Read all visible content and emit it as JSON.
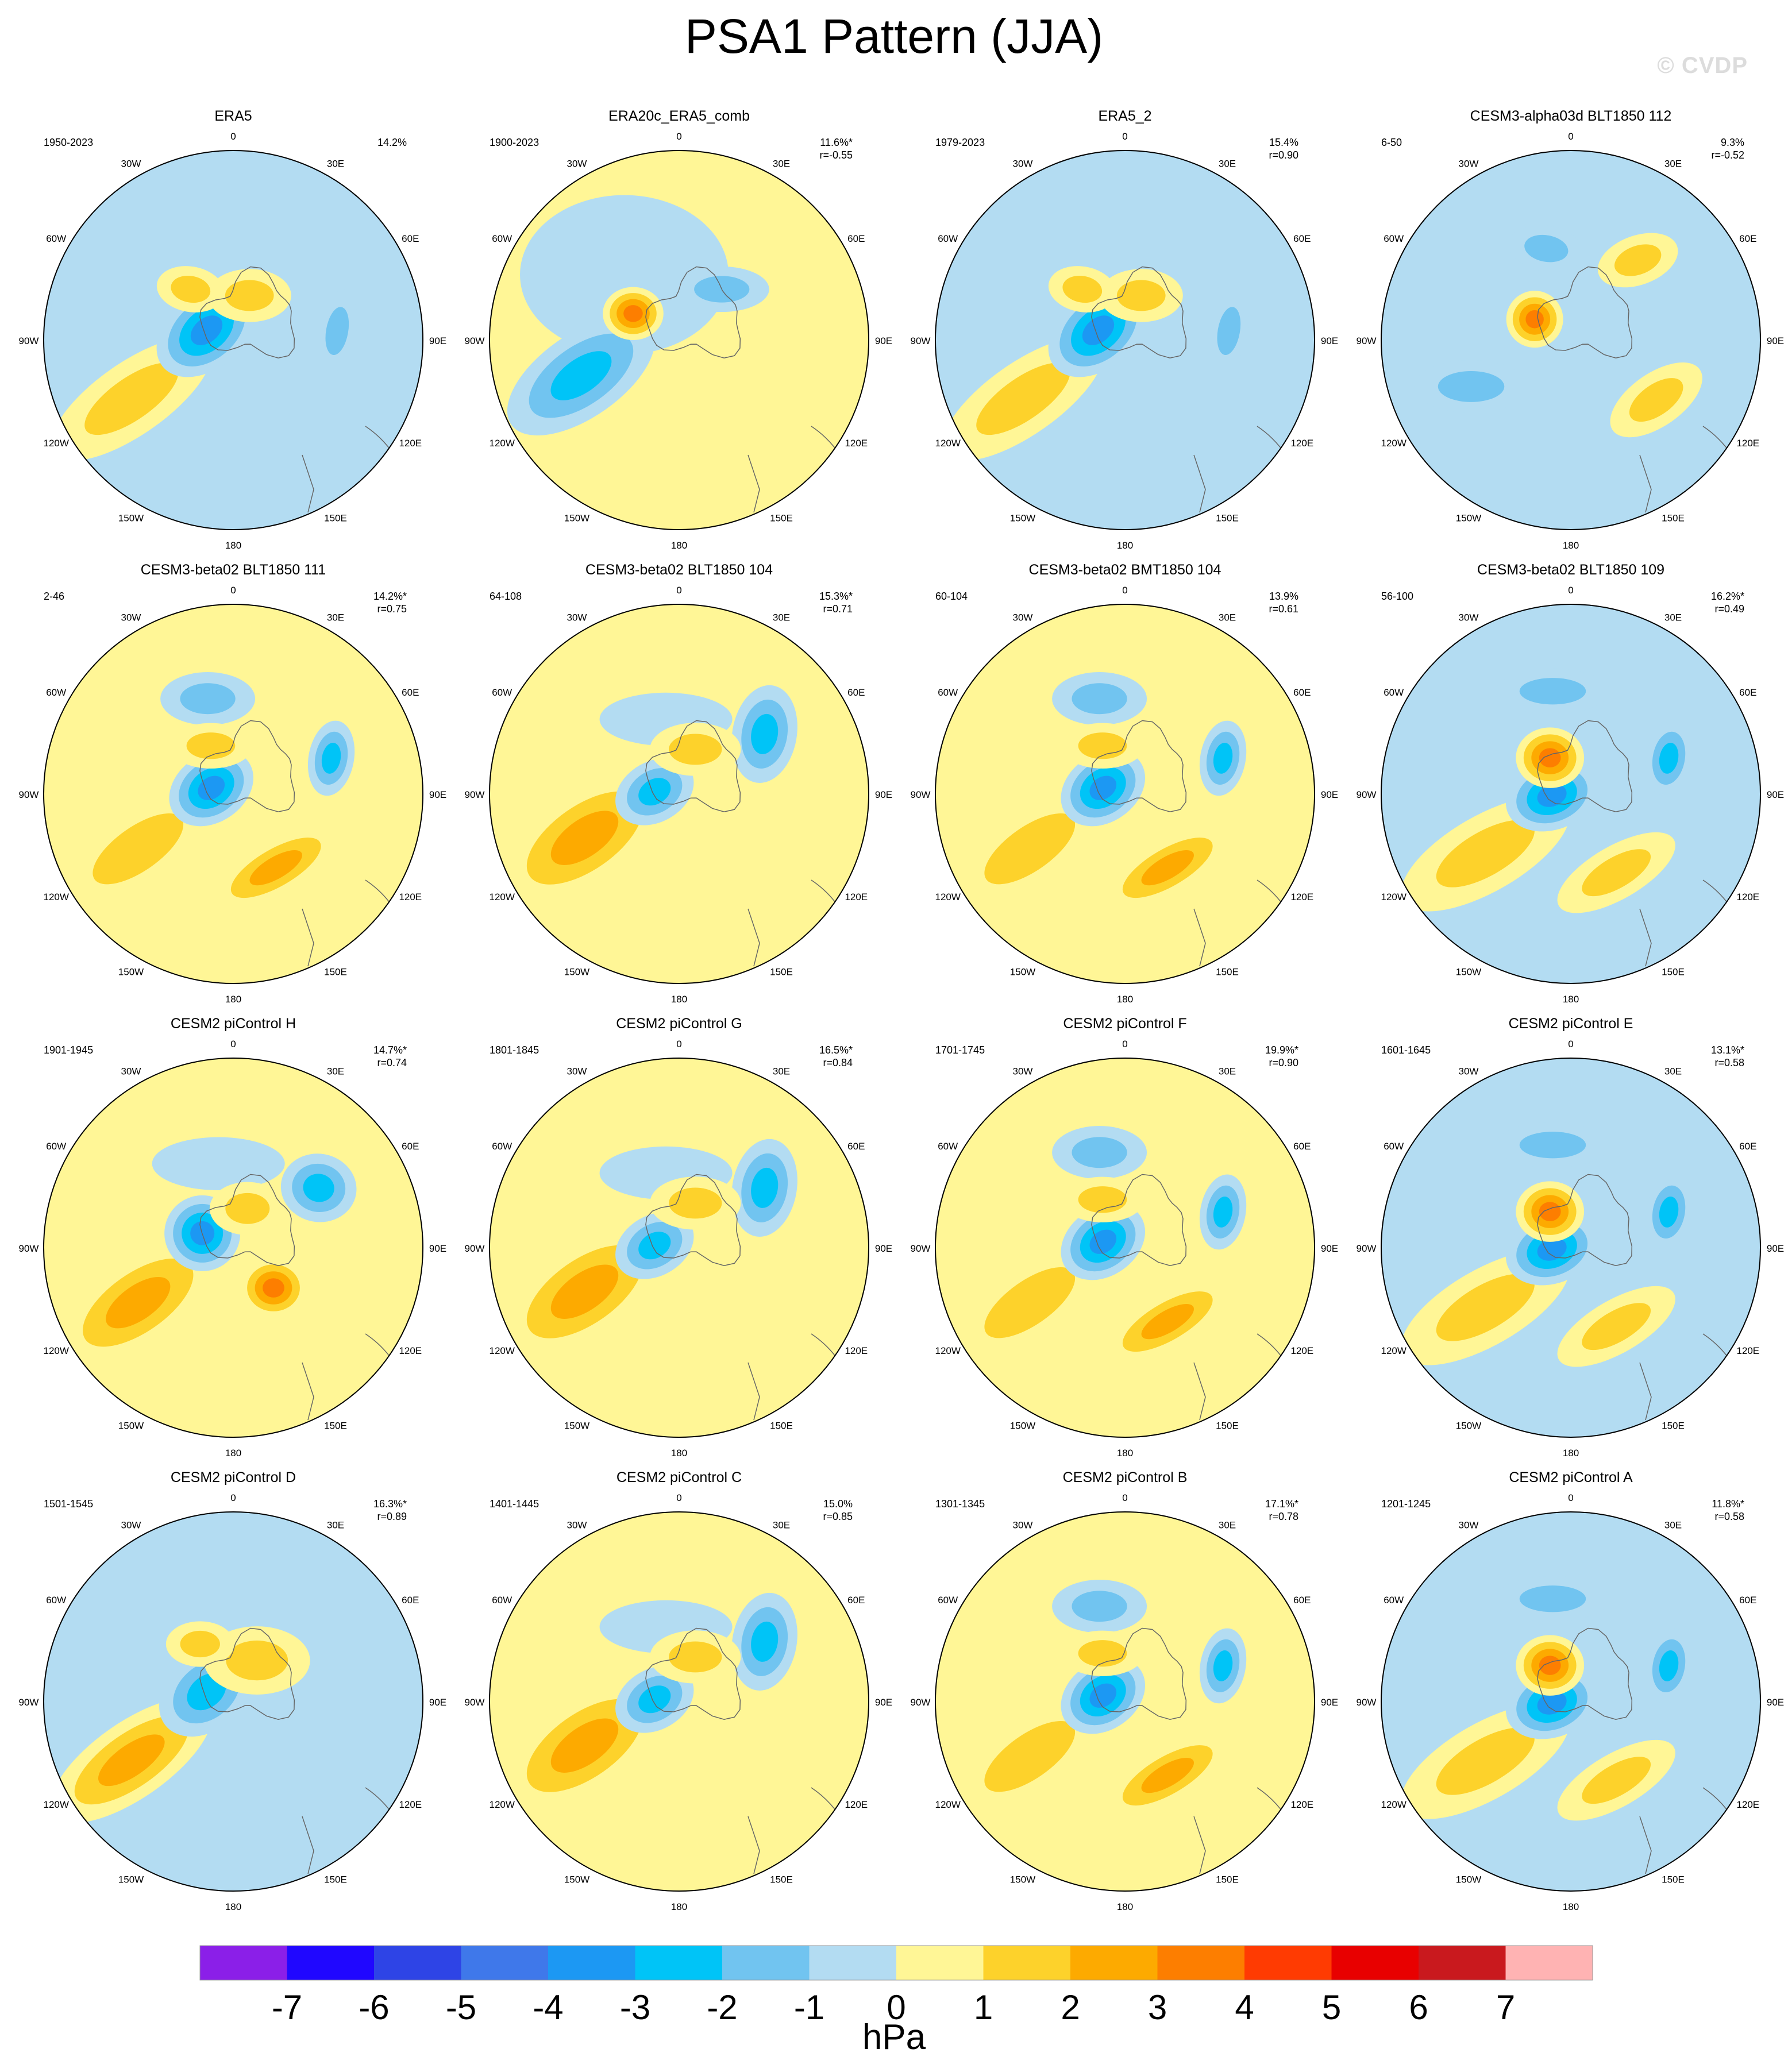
{
  "title": "PSA1 Pattern (JJA)",
  "watermark": "© CVDP",
  "lon_labels": [
    "0",
    "30E",
    "60E",
    "90E",
    "120E",
    "150E",
    "180",
    "150W",
    "120W",
    "90W",
    "60W",
    "30W"
  ],
  "panels": [
    {
      "name": "ERA5",
      "years": "1950-2023",
      "pct": "14.2%",
      "r": "",
      "pattern": "obs1"
    },
    {
      "name": "ERA20c_ERA5_comb",
      "years": "1900-2023",
      "pct": "11.6%*",
      "r": "r=-0.55",
      "pattern": "obs2"
    },
    {
      "name": "ERA5_2",
      "years": "1979-2023",
      "pct": "15.4%",
      "r": "r=0.90",
      "pattern": "obs1"
    },
    {
      "name": "CESM3-alpha03d BLT1850 112",
      "years": "6-50",
      "pct": "9.3%",
      "r": "r=-0.52",
      "pattern": "alpha"
    },
    {
      "name": "CESM3-beta02 BLT1850 111",
      "years": "2-46",
      "pct": "14.2%*",
      "r": "r=0.75",
      "pattern": "wave3"
    },
    {
      "name": "CESM3-beta02 BLT1850 104",
      "years": "64-108",
      "pct": "15.3%*",
      "r": "r=0.71",
      "pattern": "wave2"
    },
    {
      "name": "CESM3-beta02 BMT1850 104",
      "years": "60-104",
      "pct": "13.9%",
      "r": "r=0.61",
      "pattern": "wave3"
    },
    {
      "name": "CESM3-beta02 BLT1850 109",
      "years": "56-100",
      "pct": "16.2%*",
      "r": "r=0.49",
      "pattern": "wave4"
    },
    {
      "name": "CESM2 piControl H",
      "years": "1901-1945",
      "pct": "14.7%*",
      "r": "r=0.74",
      "pattern": "wave5"
    },
    {
      "name": "CESM2 piControl G",
      "years": "1801-1845",
      "pct": "16.5%*",
      "r": "r=0.84",
      "pattern": "wave2"
    },
    {
      "name": "CESM2 piControl F",
      "years": "1701-1745",
      "pct": "19.9%*",
      "r": "r=0.90",
      "pattern": "wave3"
    },
    {
      "name": "CESM2 piControl E",
      "years": "1601-1645",
      "pct": "13.1%*",
      "r": "r=0.58",
      "pattern": "wave4"
    },
    {
      "name": "CESM2 piControl D",
      "years": "1501-1545",
      "pct": "16.3%*",
      "r": "r=0.89",
      "pattern": "wave1"
    },
    {
      "name": "CESM2 piControl C",
      "years": "1401-1445",
      "pct": "15.0%",
      "r": "r=0.85",
      "pattern": "wave2"
    },
    {
      "name": "CESM2 piControl B",
      "years": "1301-1345",
      "pct": "17.1%*",
      "r": "r=0.78",
      "pattern": "wave3"
    },
    {
      "name": "CESM2 piControl A",
      "years": "1201-1245",
      "pct": "11.8%*",
      "r": "r=0.58",
      "pattern": "wave4"
    }
  ],
  "colorbar": {
    "units": "hPa",
    "ticks": [
      "-7",
      "-6",
      "-5",
      "-4",
      "-3",
      "-2",
      "-1",
      "0",
      "1",
      "2",
      "3",
      "4",
      "5",
      "6",
      "7"
    ],
    "colors": [
      "#8b1fe8",
      "#2007ff",
      "#2e44e6",
      "#3f78ea",
      "#1c98f3",
      "#00c4f7",
      "#71c4f0",
      "#b3dcf2",
      "#fff696",
      "#fdd22b",
      "#fdaa00",
      "#fd7e00",
      "#ff3b02",
      "#e80000",
      "#c9191e",
      "#ffb3b3"
    ]
  }
}
